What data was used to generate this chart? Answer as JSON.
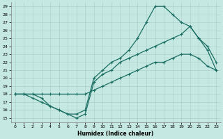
{
  "xlabel": "Humidex (Indice chaleur)",
  "xlim": [
    -0.5,
    23.5
  ],
  "ylim": [
    14.5,
    29.5
  ],
  "xticks": [
    0,
    1,
    2,
    3,
    4,
    5,
    6,
    7,
    8,
    9,
    10,
    11,
    12,
    13,
    14,
    15,
    16,
    17,
    18,
    19,
    20,
    21,
    22,
    23
  ],
  "yticks": [
    15,
    16,
    17,
    18,
    19,
    20,
    21,
    22,
    23,
    24,
    25,
    26,
    27,
    28,
    29
  ],
  "background_color": "#c5e8e2",
  "line_color": "#1a6e62",
  "grid_color": "#b8d8d2",
  "curve_top": {
    "x": [
      0,
      1,
      2,
      3,
      4,
      5,
      6,
      7,
      8,
      9,
      10,
      11,
      12,
      13,
      14,
      15,
      16,
      17,
      18,
      19,
      20,
      21,
      22,
      23
    ],
    "y": [
      18,
      18,
      17.5,
      17,
      16.5,
      16,
      15.5,
      15.5,
      16,
      20,
      21,
      22,
      22.5,
      23.5,
      25,
      27,
      29,
      29,
      28,
      27,
      26.5,
      25,
      23.5,
      21
    ]
  },
  "curve_mid": {
    "x": [
      0,
      1,
      2,
      3,
      4,
      5,
      6,
      7,
      8,
      9,
      10,
      11,
      12,
      13,
      14,
      15,
      16,
      17,
      18,
      19,
      20,
      21,
      22,
      23
    ],
    "y": [
      18,
      18,
      18,
      17.5,
      16.5,
      16,
      15.5,
      15,
      15.5,
      19.5,
      20.5,
      21,
      22,
      22.5,
      23,
      23.5,
      24,
      24.5,
      25,
      25.5,
      26.5,
      25,
      24,
      22
    ]
  },
  "curve_bot": {
    "x": [
      0,
      1,
      2,
      3,
      4,
      5,
      6,
      7,
      8,
      9,
      10,
      11,
      12,
      13,
      14,
      15,
      16,
      17,
      18,
      19,
      20,
      21,
      22,
      23
    ],
    "y": [
      18,
      18,
      18,
      18,
      18,
      18,
      18,
      18,
      18,
      18.5,
      19,
      19.5,
      20,
      20.5,
      21,
      21.5,
      22,
      22,
      22.5,
      23,
      23,
      22.5,
      21.5,
      21
    ]
  }
}
